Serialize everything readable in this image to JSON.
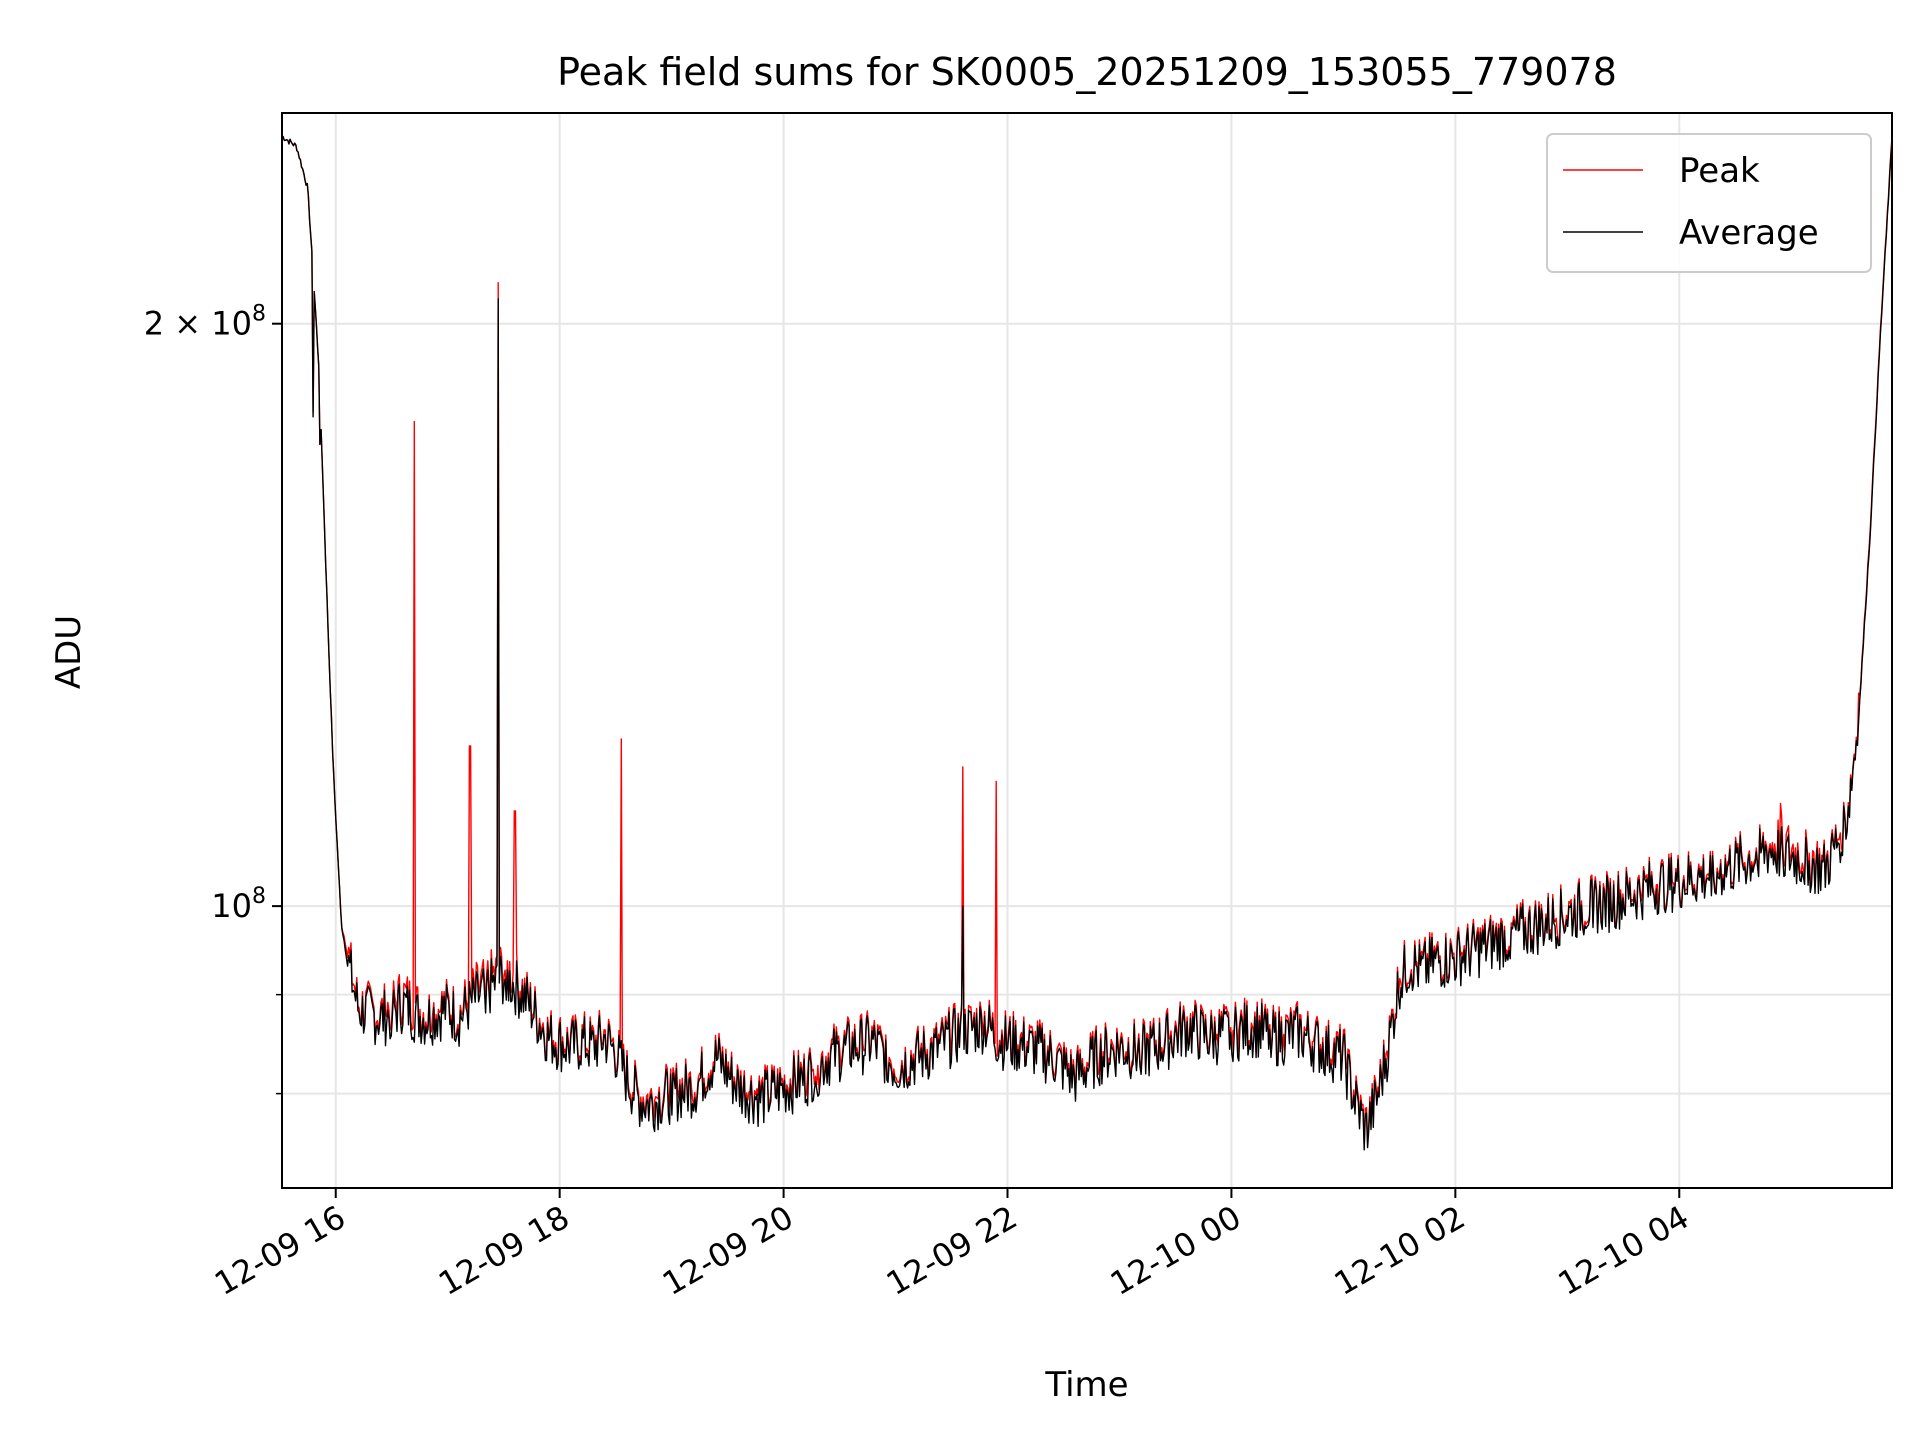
{
  "chart_data": {
    "type": "line",
    "title": "Peak field sums for SK0005_20251209_153055_779078",
    "xlabel": "Time",
    "ylabel": "ADU",
    "yscale": "log",
    "xlim_hours": [
      -0.48,
      13.9
    ],
    "ylim": [
      71500000,
      257000000
    ],
    "x_ticks": [
      {
        "hours": 0,
        "label": "12-09 16"
      },
      {
        "hours": 2,
        "label": "12-09 18"
      },
      {
        "hours": 4,
        "label": "12-09 20"
      },
      {
        "hours": 6,
        "label": "12-09 22"
      },
      {
        "hours": 8,
        "label": "12-10 00"
      },
      {
        "hours": 10,
        "label": "12-10 02"
      },
      {
        "hours": 12,
        "label": "12-10 04"
      }
    ],
    "y_major_ticks": [
      {
        "value": 100000000,
        "label_base": "10",
        "label_exp": "8",
        "label_coef": ""
      },
      {
        "value": 200000000,
        "label_base": "10",
        "label_exp": "8",
        "label_coef": "2 × "
      }
    ],
    "y_minor_ticks": [
      80000000,
      90000000
    ],
    "grid": true,
    "legend_position": "upper right",
    "series": [
      {
        "name": "Peak",
        "color": "#ff0000",
        "x_hours": [
          -0.48,
          -0.35,
          -0.25,
          -0.15,
          -0.08,
          -0.02,
          0.05,
          0.1,
          0.2,
          0.3,
          0.4,
          0.5,
          0.6,
          0.7,
          0.8,
          0.9,
          1.0,
          1.1,
          1.2,
          1.3,
          1.4,
          1.5,
          1.6,
          1.7,
          1.8,
          1.9,
          2.0,
          2.1,
          2.2,
          2.3,
          2.4,
          2.5,
          2.6,
          2.7,
          2.8,
          2.9,
          3.0,
          3.2,
          3.4,
          3.6,
          3.8,
          4.0,
          4.2,
          4.4,
          4.6,
          4.8,
          5.0,
          5.2,
          5.4,
          5.5,
          5.6,
          5.7,
          5.8,
          5.9,
          6.0,
          6.2,
          6.4,
          6.6,
          6.8,
          7.0,
          7.2,
          7.4,
          7.6,
          7.8,
          8.0,
          8.2,
          8.4,
          8.6,
          8.8,
          9.0,
          9.1,
          9.2,
          9.3,
          9.4,
          9.5,
          9.6,
          9.7,
          9.8,
          10.0,
          10.2,
          10.4,
          10.6,
          10.8,
          11.0,
          11.2,
          11.4,
          11.6,
          11.8,
          12.0,
          12.2,
          12.4,
          12.6,
          12.8,
          12.9,
          13.0,
          13.1,
          13.2,
          13.3,
          13.4,
          13.5,
          13.6,
          13.7,
          13.8,
          13.9
        ],
        "values": [
          250000000.0,
          247000000.0,
          235000000.0,
          190000000.0,
          145000000.0,
          117000000.0,
          98000000.0,
          95000000.0,
          89000000.0,
          88500000.0,
          88000000.0,
          89000000.0,
          90000000.0,
          89000000.0,
          88000000.0,
          88500000.0,
          89000000.0,
          88000000.0,
          90000000.0,
          91000000.0,
          92000000.0,
          93000000.0,
          92000000.0,
          90000000.0,
          88000000.0,
          86000000.0,
          85500000.0,
          85000000.0,
          85500000.0,
          85000000.0,
          86000000.0,
          84500000.0,
          82000000.0,
          80000000.0,
          79500000.0,
          80000000.0,
          80500000.0,
          81000000.0,
          84000000.0,
          81000000.0,
          80000000.0,
          81000000.0,
          82000000.0,
          84000000.0,
          85000000.0,
          85500000.0,
          83000000.0,
          84000000.0,
          85000000.0,
          86000000.0,
          86500000.0,
          87000000.0,
          87500000.0,
          86000000.0,
          85500000.0,
          85000000.0,
          84000000.0,
          82000000.0,
          84000000.0,
          85000000.0,
          84500000.0,
          85500000.0,
          87000000.0,
          86000000.0,
          86500000.0,
          87000000.0,
          86000000.0,
          86500000.0,
          85000000.0,
          84000000.0,
          80000000.0,
          77000000.0,
          80000000.0,
          85000000.0,
          92000000.0,
          94000000.0,
          93000000.0,
          94000000.0,
          94500000.0,
          95500000.0,
          96500000.0,
          97500000.0,
          98500000.0,
          99500000.0,
          100500000.0,
          101000000.0,
          102000000.0,
          103000000.0,
          103500000.0,
          104000000.0,
          105000000.0,
          106000000.0,
          107500000.0,
          108000000.0,
          107000000.0,
          106500000.0,
          106000000.0,
          105000000.0,
          108000000.0,
          112000000.0,
          125000000.0,
          155000000.0,
          200000000.0,
          250000000.0
        ],
        "spikes": [
          {
            "x_hours": -0.2,
            "value": 180000000
          },
          {
            "x_hours": 0.7,
            "value": 178000000
          },
          {
            "x_hours": 1.2,
            "value": 121000000
          },
          {
            "x_hours": 1.45,
            "value": 210000000
          },
          {
            "x_hours": 1.6,
            "value": 112000000
          },
          {
            "x_hours": 2.55,
            "value": 122000000
          },
          {
            "x_hours": 5.6,
            "value": 118000000
          },
          {
            "x_hours": 5.9,
            "value": 116000000
          },
          {
            "x_hours": 12.9,
            "value": 113000000
          }
        ]
      },
      {
        "name": "Average",
        "color": "#000000",
        "x_hours": [
          -0.48,
          -0.35,
          -0.25,
          -0.15,
          -0.08,
          -0.02,
          0.05,
          0.1,
          0.2,
          0.3,
          0.4,
          0.5,
          0.6,
          0.7,
          0.8,
          0.9,
          1.0,
          1.1,
          1.2,
          1.3,
          1.4,
          1.5,
          1.6,
          1.7,
          1.8,
          1.9,
          2.0,
          2.1,
          2.2,
          2.3,
          2.4,
          2.5,
          2.6,
          2.7,
          2.8,
          2.9,
          3.0,
          3.2,
          3.4,
          3.6,
          3.8,
          4.0,
          4.2,
          4.4,
          4.6,
          4.8,
          5.0,
          5.2,
          5.4,
          5.5,
          5.6,
          5.7,
          5.8,
          5.9,
          6.0,
          6.2,
          6.4,
          6.6,
          6.8,
          7.0,
          7.2,
          7.4,
          7.6,
          7.8,
          8.0,
          8.2,
          8.4,
          8.6,
          8.8,
          9.0,
          9.1,
          9.2,
          9.3,
          9.4,
          9.5,
          9.6,
          9.7,
          9.8,
          10.0,
          10.2,
          10.4,
          10.6,
          10.8,
          11.0,
          11.2,
          11.4,
          11.6,
          11.8,
          12.0,
          12.2,
          12.4,
          12.6,
          12.8,
          12.9,
          13.0,
          13.1,
          13.2,
          13.3,
          13.4,
          13.5,
          13.6,
          13.7,
          13.8,
          13.9
        ],
        "values": [
          250000000.0,
          247000000.0,
          235000000.0,
          190000000.0,
          145000000.0,
          117000000.0,
          98000000.0,
          94000000.0,
          88500000.0,
          88000000.0,
          87500000.0,
          88000000.0,
          89000000.0,
          88000000.0,
          87500000.0,
          88000000.0,
          88500000.0,
          87500000.0,
          89000000.0,
          90000000.0,
          91000000.0,
          92000000.0,
          91000000.0,
          89500000.0,
          87500000.0,
          85500000.0,
          85000000.0,
          84500000.0,
          85000000.0,
          84500000.0,
          85500000.0,
          84000000.0,
          81500000.0,
          79500000.0,
          79000000.0,
          79500000.0,
          80000000.0,
          80500000.0,
          83500000.0,
          80500000.0,
          79500000.0,
          80500000.0,
          81500000.0,
          83500000.0,
          84500000.0,
          85000000.0,
          82500000.0,
          83500000.0,
          84500000.0,
          85500000.0,
          86000000.0,
          86500000.0,
          87000000.0,
          85500000.0,
          85000000.0,
          84500000.0,
          83500000.0,
          81500000.0,
          83500000.0,
          84500000.0,
          84000000.0,
          85000000.0,
          86500000.0,
          85500000.0,
          86000000.0,
          86500000.0,
          85500000.0,
          86000000.0,
          84500000.0,
          83500000.0,
          79500000.0,
          76500000.0,
          79500000.0,
          84500000.0,
          91500000.0,
          93500000.0,
          92500000.0,
          93500000.0,
          94000000.0,
          95000000.0,
          96000000.0,
          97000000.0,
          98000000.0,
          99000000.0,
          100000000.0,
          100500000.0,
          101500000.0,
          102500000.0,
          103000000.0,
          103500000.0,
          104500000.0,
          105500000.0,
          107000000.0,
          106500000.0,
          106000000.0,
          105500000.0,
          105000000.0,
          104500000.0,
          107500000.0,
          111500000.0,
          124500000.0,
          154000000.0,
          199000000.0,
          249000000.0
        ],
        "spikes": [
          {
            "x_hours": -0.2,
            "value": 179000000
          },
          {
            "x_hours": 1.45,
            "value": 206000000
          },
          {
            "x_hours": 5.6,
            "value": 100000000
          }
        ]
      }
    ]
  }
}
